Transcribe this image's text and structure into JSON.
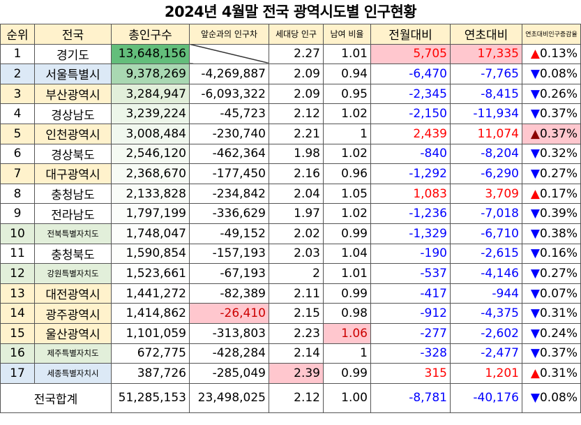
{
  "title": "2024년 4월말 전국 광역시도별 인구현황",
  "headers": [
    "순위",
    "전국",
    "총인구수",
    "앞순과의 인구차",
    "세대당 인구",
    "남여 비율",
    "전월대비",
    "연초대비",
    "연초대비인구증감율"
  ],
  "rows": [
    {
      "rank": "1",
      "region": "경기도",
      "pop": "13,648,156",
      "gap": "",
      "hh": "2.27",
      "ratio": "1.01",
      "mom": "5,705",
      "ytd": "17,335",
      "arrow": "▲",
      "pct": "0.13%"
    },
    {
      "rank": "2",
      "region": "서울특별시",
      "pop": "9,378,269",
      "gap": "-4,269,887",
      "hh": "2.09",
      "ratio": "0.94",
      "mom": "-6,470",
      "ytd": "-7,765",
      "arrow": "▼",
      "pct": "0.08%"
    },
    {
      "rank": "3",
      "region": "부산광역시",
      "pop": "3,284,947",
      "gap": "-6,093,322",
      "hh": "2.09",
      "ratio": "0.95",
      "mom": "-2,345",
      "ytd": "-8,415",
      "arrow": "▼",
      "pct": "0.26%"
    },
    {
      "rank": "4",
      "region": "경상남도",
      "pop": "3,239,224",
      "gap": "-45,723",
      "hh": "2.12",
      "ratio": "1.02",
      "mom": "-2,150",
      "ytd": "-11,934",
      "arrow": "▼",
      "pct": "0.37%"
    },
    {
      "rank": "5",
      "region": "인천광역시",
      "pop": "3,008,484",
      "gap": "-230,740",
      "hh": "2.21",
      "ratio": "1",
      "mom": "2,439",
      "ytd": "11,074",
      "arrow": "▲",
      "pct": "0.37%"
    },
    {
      "rank": "6",
      "region": "경상북도",
      "pop": "2,546,120",
      "gap": "-462,364",
      "hh": "1.98",
      "ratio": "1.02",
      "mom": "-840",
      "ytd": "-8,204",
      "arrow": "▼",
      "pct": "0.32%"
    },
    {
      "rank": "7",
      "region": "대구광역시",
      "pop": "2,368,670",
      "gap": "-177,450",
      "hh": "2.16",
      "ratio": "0.96",
      "mom": "-1,292",
      "ytd": "-6,290",
      "arrow": "▼",
      "pct": "0.27%"
    },
    {
      "rank": "8",
      "region": "충청남도",
      "pop": "2,133,828",
      "gap": "-234,842",
      "hh": "2.04",
      "ratio": "1.05",
      "mom": "1,083",
      "ytd": "3,709",
      "arrow": "▲",
      "pct": "0.17%"
    },
    {
      "rank": "9",
      "region": "전라남도",
      "pop": "1,797,199",
      "gap": "-336,629",
      "hh": "1.97",
      "ratio": "1.02",
      "mom": "-1,236",
      "ytd": "-7,018",
      "arrow": "▼",
      "pct": "0.39%"
    },
    {
      "rank": "10",
      "region": "전북특별자치도",
      "pop": "1,748,047",
      "gap": "-49,152",
      "hh": "2.02",
      "ratio": "0.99",
      "mom": "-1,329",
      "ytd": "-6,710",
      "arrow": "▼",
      "pct": "0.38%"
    },
    {
      "rank": "11",
      "region": "충청북도",
      "pop": "1,590,854",
      "gap": "-157,193",
      "hh": "2.03",
      "ratio": "1.04",
      "mom": "-190",
      "ytd": "-2,615",
      "arrow": "▼",
      "pct": "0.16%"
    },
    {
      "rank": "12",
      "region": "강원특별자치도",
      "pop": "1,523,661",
      "gap": "-67,193",
      "hh": "2",
      "ratio": "1.01",
      "mom": "-537",
      "ytd": "-4,146",
      "arrow": "▼",
      "pct": "0.27%"
    },
    {
      "rank": "13",
      "region": "대전광역시",
      "pop": "1,441,272",
      "gap": "-82,389",
      "hh": "2.11",
      "ratio": "0.99",
      "mom": "-417",
      "ytd": "-944",
      "arrow": "▼",
      "pct": "0.07%"
    },
    {
      "rank": "14",
      "region": "광주광역시",
      "pop": "1,414,862",
      "gap": "-26,410",
      "hh": "2.15",
      "ratio": "0.98",
      "mom": "-912",
      "ytd": "-4,375",
      "arrow": "▼",
      "pct": "0.31%"
    },
    {
      "rank": "15",
      "region": "울산광역시",
      "pop": "1,101,059",
      "gap": "-313,803",
      "hh": "2.23",
      "ratio": "1.06",
      "mom": "-277",
      "ytd": "-2,602",
      "arrow": "▼",
      "pct": "0.24%"
    },
    {
      "rank": "16",
      "region": "제주특별자치도",
      "pop": "672,775",
      "gap": "-428,284",
      "hh": "2.14",
      "ratio": "1",
      "mom": "-328",
      "ytd": "-2,477",
      "arrow": "▼",
      "pct": "0.37%"
    },
    {
      "rank": "17",
      "region": "세종특별자치시",
      "pop": "387,726",
      "gap": "-285,049",
      "hh": "2.39",
      "ratio": "0.99",
      "mom": "315",
      "ytd": "1,201",
      "arrow": "▲",
      "pct": "0.31%"
    }
  ],
  "total": {
    "label": "전국합계",
    "pop": "51,285,153",
    "gap": "23,498,025",
    "hh": "2.12",
    "ratio": "1.00",
    "mom": "-8,781",
    "ytd": "-40,176",
    "arrow": "▼",
    "pct": "0.08%"
  }
}
